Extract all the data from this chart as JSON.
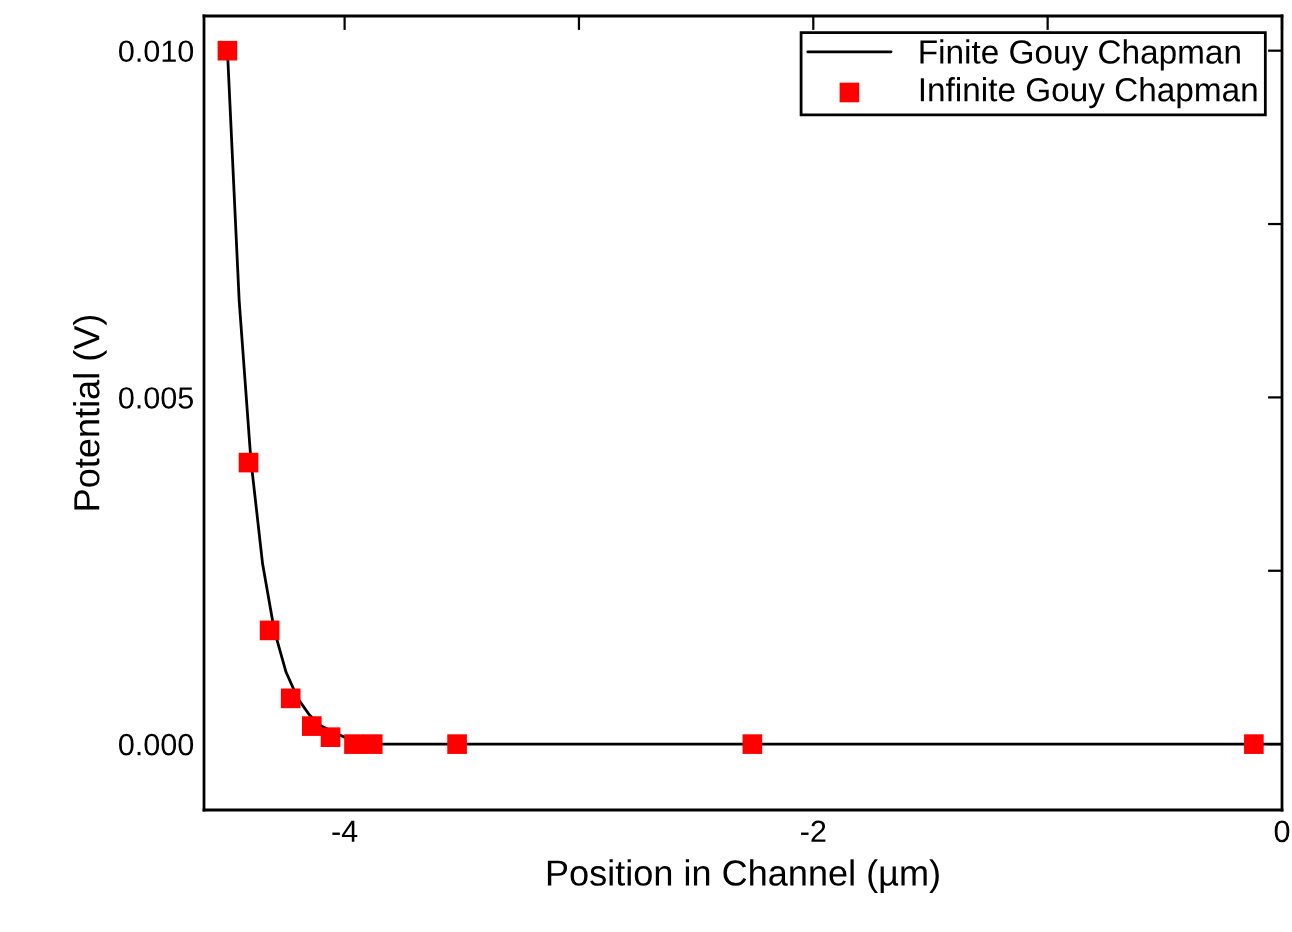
{
  "chart_data": {
    "type": "line",
    "xlabel": "Position in Channel (µm)",
    "ylabel": "Potential (V)",
    "xlim": [
      -4.6,
      0
    ],
    "xticks": [
      -4,
      {
        "value": -3,
        "label": null
      },
      -2,
      {
        "value": -1,
        "label": null
      },
      0
    ],
    "ylim": [
      -0.00095,
      0.0105
    ],
    "yticks": [
      "0.000",
      {
        "value": 0.0025,
        "label": null
      },
      {
        "value": 0.005,
        "label": "0.005"
      },
      {
        "value": 0.0075,
        "label": null
      },
      {
        "value": 0.01,
        "label": "0.010"
      }
    ],
    "grid": false,
    "legend": "top right",
    "series": [
      {
        "name": "Finite Gouy Chapman",
        "color": "#000000",
        "marker": "none",
        "line_style": "solid",
        "x": [
          -4.5,
          -4.45,
          -4.4,
          -4.35,
          -4.3,
          -4.25,
          -4.2,
          -4.15,
          -4.1,
          -4.0,
          -3.9,
          -3.7,
          -3.5,
          -2.0,
          0.0
        ],
        "values": [
          0.01,
          0.0064,
          0.0041,
          0.0026,
          0.00164,
          0.00104,
          0.00066,
          0.00042,
          0.00026,
          0.0001,
          0.0,
          0.0,
          0.0,
          0.0,
          0.0
        ]
      },
      {
        "name": "Infinite Gouy Chapman",
        "type": "scatter",
        "color": "#ff0000",
        "marker": "square",
        "x": [
          -4.5,
          -4.41,
          -4.32,
          -4.23,
          -4.14,
          -4.06,
          -3.96,
          -3.88,
          -3.52,
          -2.26,
          -0.12
        ],
        "values": [
          0.01,
          0.00406,
          0.00164,
          0.00066,
          0.00026,
          0.0001,
          0.0,
          0.0,
          0.0,
          0.0,
          0.0
        ]
      }
    ]
  }
}
